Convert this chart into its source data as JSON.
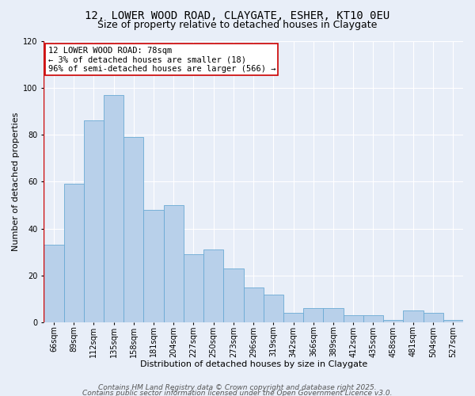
{
  "title": "12, LOWER WOOD ROAD, CLAYGATE, ESHER, KT10 0EU",
  "subtitle": "Size of property relative to detached houses in Claygate",
  "xlabel": "Distribution of detached houses by size in Claygate",
  "ylabel": "Number of detached properties",
  "categories": [
    "66sqm",
    "89sqm",
    "112sqm",
    "135sqm",
    "158sqm",
    "181sqm",
    "204sqm",
    "227sqm",
    "250sqm",
    "273sqm",
    "296sqm",
    "319sqm",
    "342sqm",
    "366sqm",
    "389sqm",
    "412sqm",
    "435sqm",
    "458sqm",
    "481sqm",
    "504sqm",
    "527sqm"
  ],
  "values": [
    33,
    59,
    86,
    97,
    79,
    48,
    50,
    29,
    31,
    23,
    15,
    12,
    4,
    6,
    6,
    3,
    3,
    1,
    5,
    4,
    1
  ],
  "bar_color": "#b8d0ea",
  "bar_edge_color": "#6aaad4",
  "background_color": "#e8eef8",
  "grid_color": "#ffffff",
  "annotation_box_color": "#ffffff",
  "annotation_border_color": "#cc0000",
  "annotation_line1": "12 LOWER WOOD ROAD: 78sqm",
  "annotation_line2": "← 3% of detached houses are smaller (18)",
  "annotation_line3": "96% of semi-detached houses are larger (566) →",
  "ylim": [
    0,
    120
  ],
  "yticks": [
    0,
    20,
    40,
    60,
    80,
    100,
    120
  ],
  "footer_line1": "Contains HM Land Registry data © Crown copyright and database right 2025.",
  "footer_line2": "Contains public sector information licensed under the Open Government Licence v3.0.",
  "title_fontsize": 10,
  "subtitle_fontsize": 9,
  "xlabel_fontsize": 8,
  "ylabel_fontsize": 8,
  "tick_fontsize": 7,
  "annotation_fontsize": 7.5,
  "footer_fontsize": 6.5
}
